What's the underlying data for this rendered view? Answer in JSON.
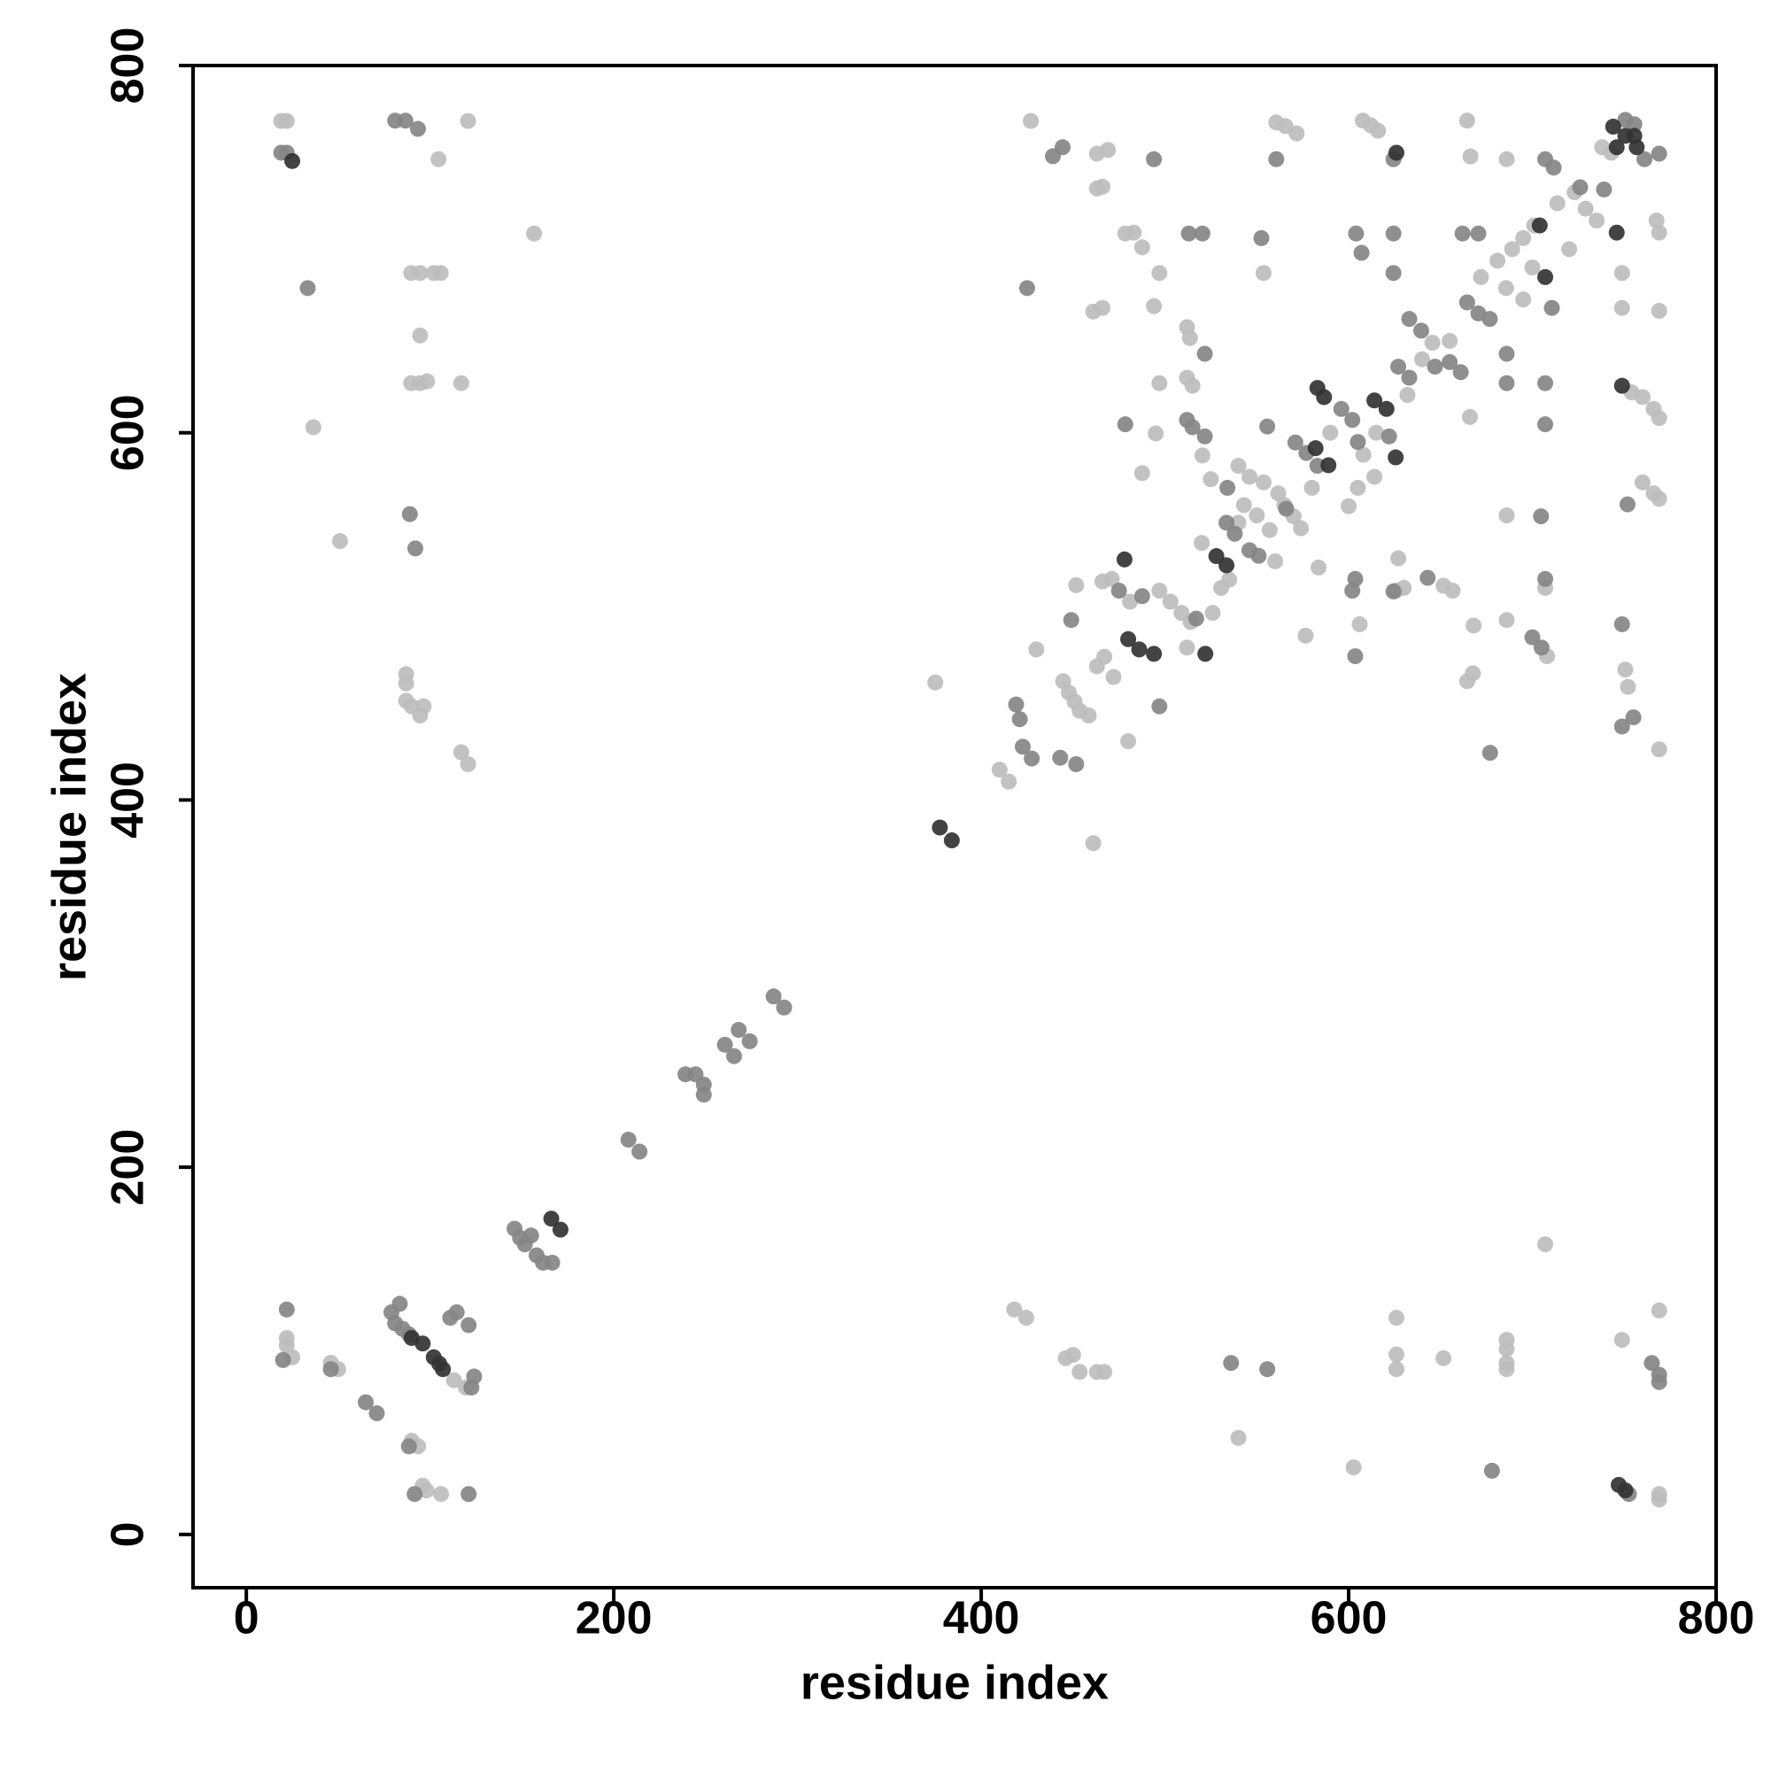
{
  "chart_data": {
    "type": "scatter",
    "xlabel": "residue index",
    "ylabel": "residue index",
    "xlim": [
      -29,
      800
    ],
    "ylim": [
      -29,
      800
    ],
    "xticks": [
      0,
      200,
      400,
      600,
      800
    ],
    "yticks": [
      0,
      200,
      400,
      600,
      800
    ],
    "grid": false,
    "series": [
      {
        "color": "#bdbdbd",
        "x": [
          22,
          22,
          25,
          46,
          50,
          113,
          119.5,
          90,
          93.5,
          96,
          106,
          98,
          19,
          22,
          36.5,
          51,
          104.6,
          120.7,
          156.6,
          89.7,
          94.6,
          102,
          105.8,
          94.6,
          89.7,
          94.6,
          98.4,
          117,
          87,
          87,
          87,
          90,
          94.6,
          96.5,
          117,
          120.7,
          418,
          424.5,
          446,
          450,
          453.6,
          463,
          467,
          540,
          602.7,
          626,
          626,
          626,
          651.6,
          686,
          686,
          686,
          686,
          707,
          748.8,
          769,
          769,
          769,
          410,
          415,
          444.6,
          447.7,
          450.8,
          453.6,
          458.5,
          451.7,
          430,
          463,
          467,
          472,
          466,
          471,
          481,
          497,
          503,
          509,
          514,
          512,
          526,
          530.6,
          540,
          543,
          540,
          546,
          553.7,
          561.7,
          565,
          570,
          574,
          608,
          614,
          605,
          632,
          645.6,
          672,
          681,
          689,
          695,
          701,
          685.7,
          695,
          713.6,
          723,
          729,
          735,
          738,
          743,
          767.6,
          769,
          748.8,
          748.8,
          769,
          754,
          760,
          766,
          769,
          760,
          766,
          769,
          752,
          750.6,
          769,
          707,
          708,
          686,
          686,
          664.5,
          667.6,
          668,
          666,
          651.6,
          656.6,
          627,
          625.7,
          630,
          606,
          576.6,
          583.6,
          557,
          553.7,
          560.6,
          565.6,
          571.7,
          607.7,
          612,
          616,
          664.5,
          666.3,
          686,
          427,
          463,
          469,
          478.4,
          483,
          487.6,
          497,
          494,
          461,
          466,
          463,
          466,
          512,
          513.6,
          512,
          515,
          497,
          495,
          487.6,
          520.4,
          525,
          480,
          461,
          375,
          520,
          535,
          560,
          590,
          600,
          615,
          640,
          655,
          700,
          720,
          580,
          550
        ],
        "values": [
          107,
          103,
          96.5,
          93.5,
          90,
          84,
          80,
          51,
          48,
          26.6,
          22,
          24,
          769.8,
          769.8,
          603,
          541,
          749,
          769.8,
          708.5,
          687,
          687,
          687,
          687,
          653,
          627,
          627,
          628,
          627,
          468.5,
          463.5,
          454,
          451,
          446,
          451,
          426,
          419.5,
          122.5,
          118,
          96,
          97.8,
          88.5,
          88.5,
          88.5,
          52.6,
          36.5,
          118,
          98,
          90,
          96,
          106,
          101,
          93.4,
          90,
          158,
          106,
          122,
          22,
          19,
          416.5,
          410,
          464.7,
          458.5,
          453.6,
          448.6,
          446,
          517,
          482,
          472.8,
          478,
          467,
          519,
          520.4,
          508,
          514,
          508,
          501.9,
          497,
          483,
          501.9,
          515.5,
          551,
          560.6,
          582,
          576,
          573,
          567,
          560.6,
          554.5,
          548,
          588,
          576,
          570,
          620.6,
          649,
          684.8,
          693.7,
          700,
          706,
          712.9,
          678.8,
          672.6,
          725,
          731,
          722,
          715.6,
          755.5,
          752.5,
          715.6,
          709,
          687,
          668,
          666.4,
          622,
          619.4,
          613,
          608,
          573,
          567,
          564,
          461.6,
          471,
          427.6,
          515.5,
          478.3,
          498,
          555,
          464.7,
          469,
          495,
          608.6,
          516.7,
          514,
          531.6,
          514,
          515.5,
          495.7,
          489.5,
          526.6,
          547,
          687,
          769,
          767,
          763,
          770,
          767.5,
          764.5,
          770,
          750.5,
          749,
          769.8,
          752,
          754,
          708.5,
          709,
          701,
          687,
          669,
          666,
          668,
          733,
          734,
          657.5,
          651.6,
          630,
          625.6,
          627,
          599.6,
          578,
          587.6,
          574.7,
          432,
          376.5,
          464,
          540,
          520,
          530,
          600,
          560,
          600,
          640,
          650,
          690,
          700,
          570,
          555
        ]
      },
      {
        "color": "#858585",
        "x": [
          22,
          20,
          46,
          65,
          71,
          79,
          83.5,
          81,
          85,
          88.5,
          114.5,
          111,
          121,
          124,
          122.5,
          88.5,
          91.6,
          121,
          146,
          149,
          151.6,
          155,
          158,
          161.5,
          166.5,
          208,
          214,
          239,
          244.5,
          249,
          249,
          260.5,
          265.5,
          268,
          274,
          287,
          292.7,
          22,
          19,
          33.4,
          81,
          86.6,
          93.4,
          89,
          92,
          536,
          555.7,
          678,
          765,
          769,
          769,
          752.5,
          419,
          421,
          422.6,
          427.5,
          443,
          451.7,
          449,
          475,
          487.6,
          517,
          533.5,
          538,
          546,
          551,
          534,
          571,
          577,
          583,
          596,
          602,
          605,
          622,
          627,
          633,
          633,
          639.5,
          647,
          655,
          661,
          664.5,
          670.6,
          676.8,
          739,
          726,
          707,
          711.6,
          761,
          769,
          750.6,
          755.5,
          751.8,
          748.8,
          748.8,
          755,
          707,
          707,
          704.7,
          707,
          705,
          700,
          677,
          686,
          686,
          643,
          624.4,
          603.6,
          603.6,
          602,
          566,
          552.5,
          560.6,
          624.4,
          624.4,
          624.4,
          604,
          607,
          670.6,
          662,
          494,
          439,
          444.3,
          425,
          521.7,
          513,
          520.4,
          478.4,
          512,
          515,
          521.7,
          497,
          555.7,
          710.6
        ],
        "values": [
          122.5,
          95,
          90,
          72,
          66,
          121,
          125.6,
          115,
          112,
          109,
          121,
          118,
          114,
          86,
          80,
          48,
          22,
          22,
          166.5,
          161.5,
          158,
          162.8,
          152,
          148,
          148,
          215,
          208.5,
          250.6,
          250.6,
          245,
          239.5,
          266.7,
          260.5,
          274.8,
          268.6,
          293,
          287,
          752.5,
          752.5,
          678.8,
          770,
          770,
          765.5,
          555.7,
          537,
          93.4,
          90,
          34.7,
          93.4,
          87,
          83,
          22,
          452,
          444,
          429,
          422.6,
          423,
          419.5,
          498,
          514,
          511,
          498.8,
          551,
          545,
          536,
          533,
          570,
          594.7,
          589,
          582,
          613,
          607,
          595,
          598,
          636,
          630,
          662,
          655.6,
          636,
          638.5,
          633,
          671,
          665,
          662,
          732.5,
          733.7,
          749,
          744.4,
          749,
          752,
          770.4,
          768,
          561,
          495.7,
          440,
          445,
          627,
          604.6,
          554.5,
          520.4,
          483,
          488.6,
          425.7,
          627,
          643,
          521,
          513.6,
          478.3,
          520.4,
          514,
          558.6,
          706,
          749,
          749,
          708.5,
          687,
          708.5,
          698,
          708.5,
          708.5,
          749,
          750.6,
          755.5,
          678.8,
          643,
          708.5,
          708.5,
          604.6,
          607,
          603,
          598,
          451,
          603.4,
          668
        ]
      },
      {
        "color": "#333333",
        "x": [
          90,
          96,
          102,
          105,
          107,
          166,
          171,
          377.5,
          384,
          25,
          747,
          750.6,
          478,
          480,
          486,
          494,
          522,
          528,
          533.5,
          583,
          586.6,
          582,
          589,
          614,
          620.6,
          625.6,
          707,
          704,
          744,
          750.6,
          756.8,
          755.5,
          745.9,
          745.9,
          748.8,
          626
        ],
        "values": [
          107,
          104,
          96.5,
          93,
          90,
          172,
          166,
          385,
          378,
          748,
          27,
          24,
          531,
          487.6,
          482,
          479.6,
          479.6,
          532.8,
          527.8,
          624.4,
          619.4,
          591.6,
          582.3,
          617.6,
          613,
          586.6,
          684.8,
          712.9,
          766.7,
          761.7,
          755.5,
          761.7,
          755.5,
          709,
          625.6,
          752.5
        ]
      }
    ]
  }
}
